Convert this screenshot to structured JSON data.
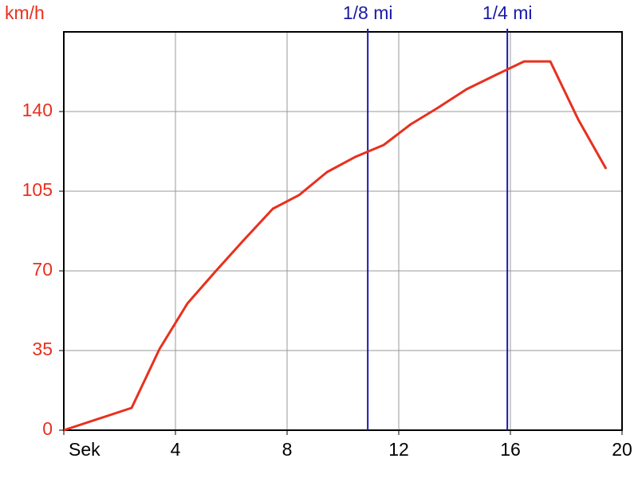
{
  "chart_data": {
    "type": "line",
    "y_label": "km/h",
    "x": [
      0,
      2.43,
      3.43,
      4.43,
      5.43,
      6.43,
      7.49,
      8.43,
      9.43,
      10.43,
      11.46,
      12.43,
      13.37,
      14.43,
      15.43,
      16.49,
      17.43,
      18.43,
      19.43
    ],
    "series": [
      {
        "color": "#e8301e",
        "values": [
          0,
          9.8,
          35.7,
          55.7,
          69.7,
          83.3,
          97.3,
          103.3,
          113.4,
          120,
          125.3,
          134.4,
          141.4,
          149.8,
          155.8,
          162,
          162,
          136.5,
          114.8
        ]
      }
    ],
    "xlim": [
      0,
      20
    ],
    "xticks": [
      {
        "value": 0,
        "label": "Sek"
      },
      4,
      8,
      12,
      16,
      20
    ],
    "ylim": [
      0,
      175
    ],
    "yticks": [
      0,
      35,
      70,
      105,
      140
    ],
    "grid": true,
    "ytick_color": "#e8301e",
    "markers": [
      {
        "x": 10.89,
        "label": "1/8 mi",
        "color": "#1a1aa8"
      },
      {
        "x": 15.89,
        "label": "1/4 mi",
        "color": "#1a1aa8"
      }
    ]
  }
}
